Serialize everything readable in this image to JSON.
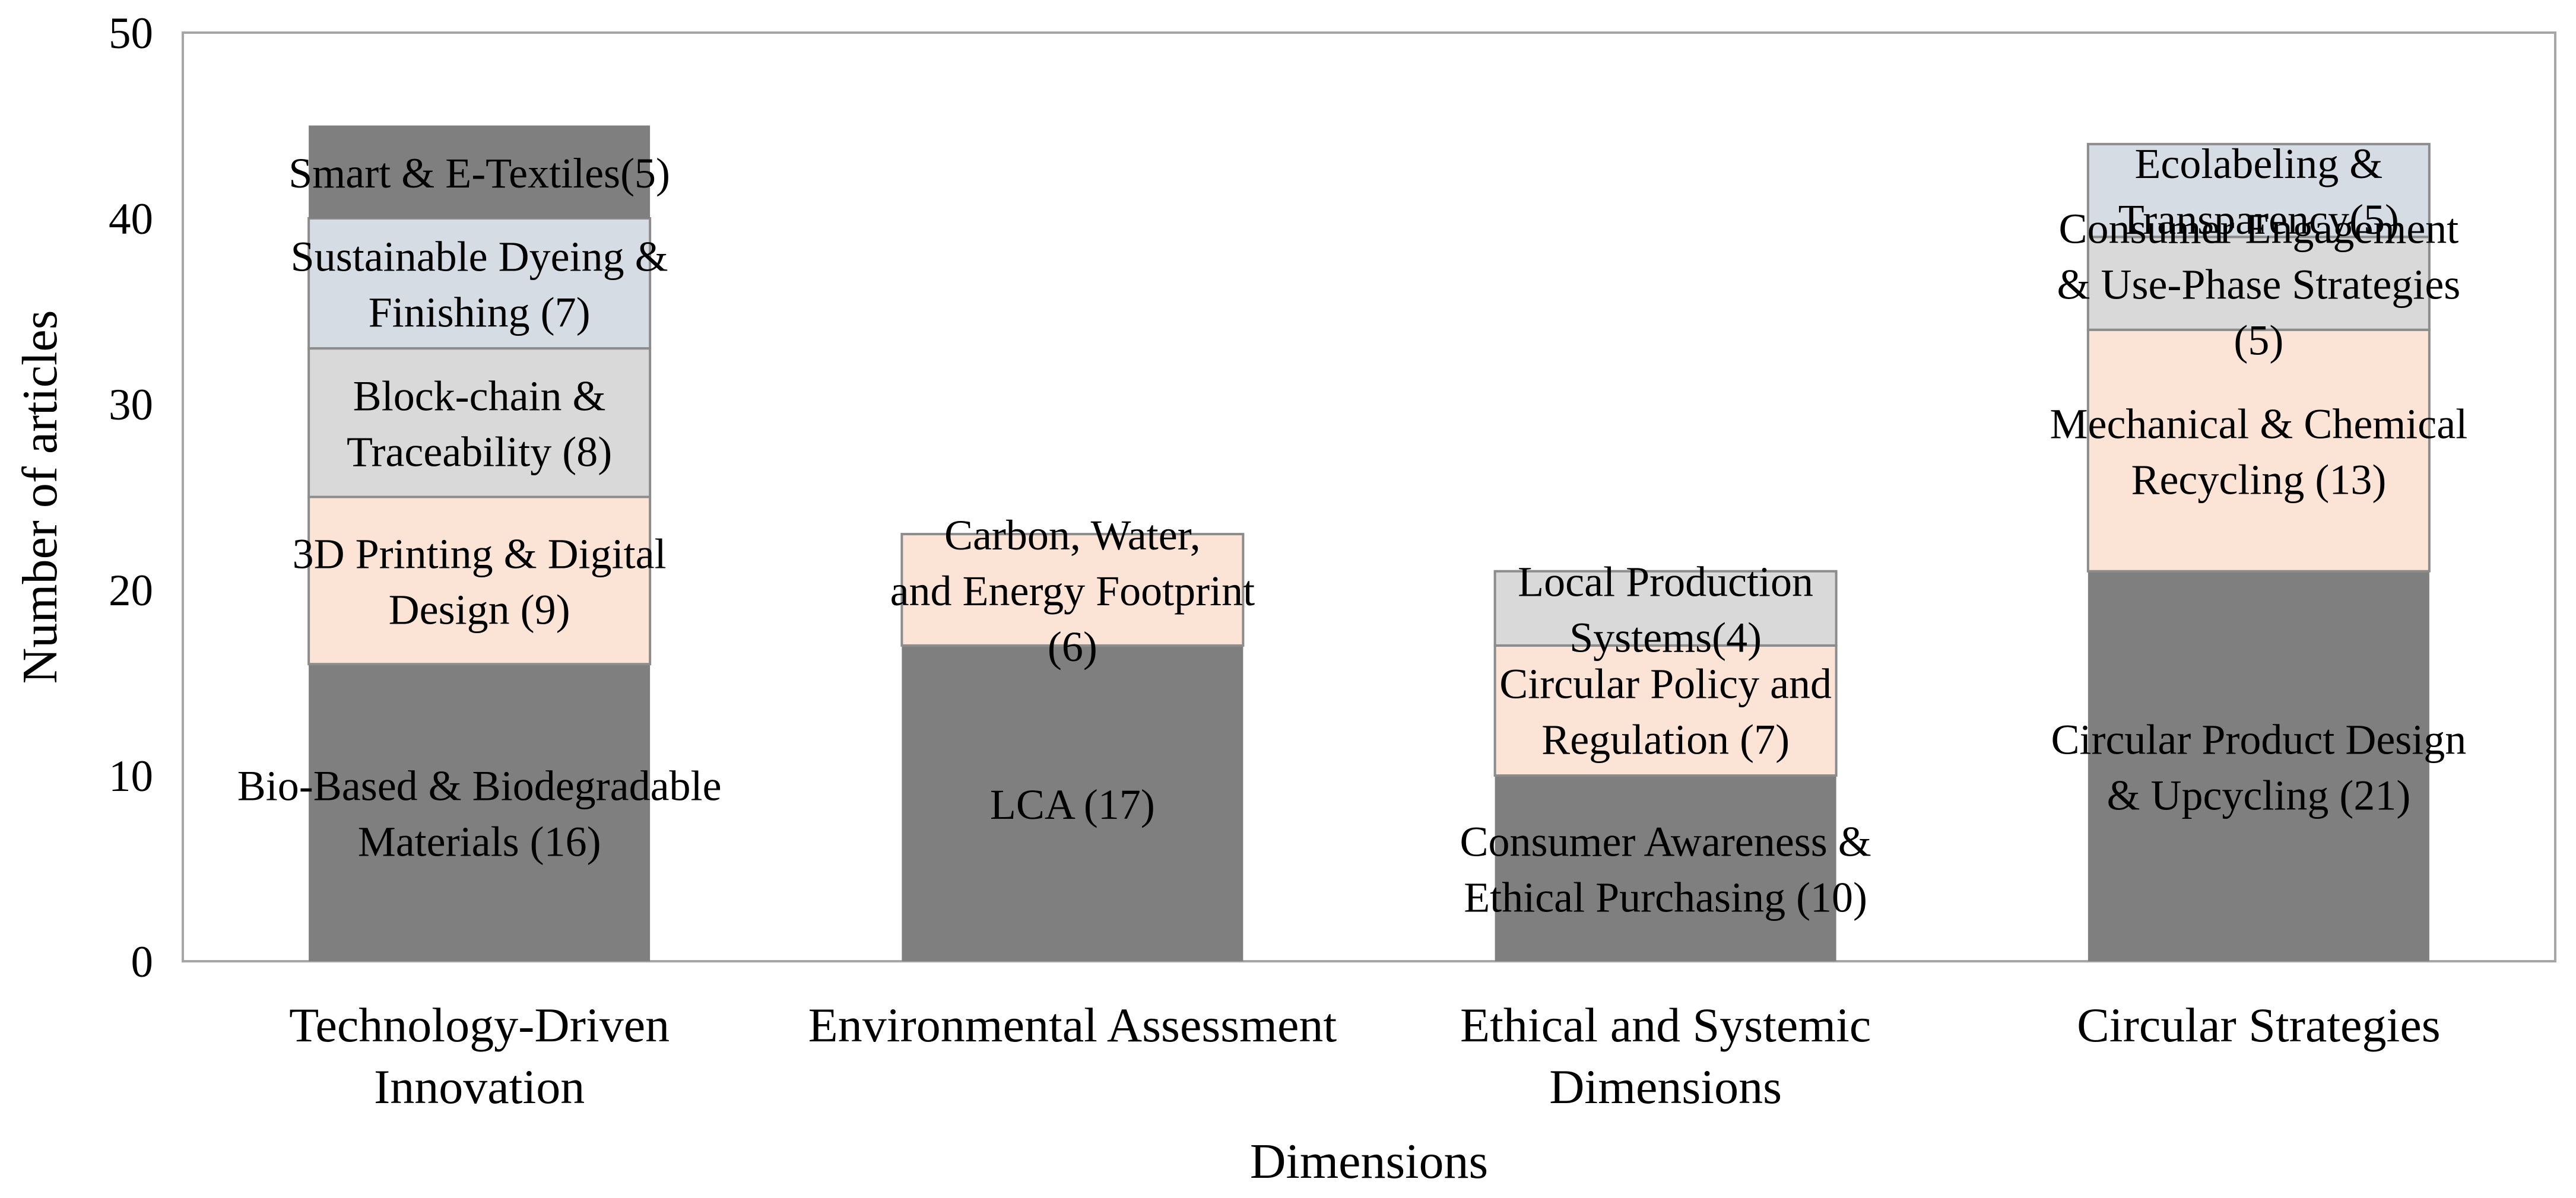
{
  "chart_data": {
    "type": "bar",
    "stacked": true,
    "title": "",
    "xlabel": "Dimensions",
    "ylabel": "Number of articles",
    "ylim": [
      0,
      50
    ],
    "yticks": [
      0,
      10,
      20,
      30,
      40,
      50
    ],
    "grid": false,
    "legend": "none",
    "categories": [
      {
        "label": [
          "Technology-Driven",
          "Innovation"
        ],
        "segments": [
          {
            "value": 16,
            "color": "#7f7f7f",
            "label": [
              "Bio-Based & Biodegradable",
              "Materials (16)"
            ]
          },
          {
            "value": 9,
            "color": "#fbe4d5",
            "label": [
              "3D Printing & Digital",
              "Design (9)"
            ]
          },
          {
            "value": 8,
            "color": "#d9d9d9",
            "label": [
              "Block-chain &",
              "Traceability (8)"
            ]
          },
          {
            "value": 7,
            "color": "#d6dce4",
            "label": [
              "Sustainable Dyeing &",
              "Finishing (7)"
            ]
          },
          {
            "value": 5,
            "color": "#7f7f7f",
            "label": [
              "Smart  & E-Textiles(5)"
            ]
          }
        ]
      },
      {
        "label": [
          "Environmental Assessment"
        ],
        "segments": [
          {
            "value": 17,
            "color": "#7f7f7f",
            "label": [
              "LCA (17)"
            ]
          },
          {
            "value": 6,
            "color": "#fbe4d5",
            "label": [
              "Carbon, Water,",
              "and Energy Footprint",
              "(6)"
            ]
          }
        ]
      },
      {
        "label": [
          "Ethical and Systemic",
          "Dimensions"
        ],
        "segments": [
          {
            "value": 10,
            "color": "#7f7f7f",
            "label": [
              "Consumer Awareness &",
              "Ethical Purchasing (10)"
            ]
          },
          {
            "value": 7,
            "color": "#fbe4d5",
            "label": [
              "Circular Policy and",
              "Regulation (7)"
            ]
          },
          {
            "value": 4,
            "color": "#d9d9d9",
            "label": [
              "Local Production",
              "Systems(4)"
            ]
          }
        ]
      },
      {
        "label": [
          "Circular Strategies"
        ],
        "segments": [
          {
            "value": 21,
            "color": "#7f7f7f",
            "label": [
              "Circular Product Design",
              "& Upcycling (21)"
            ]
          },
          {
            "value": 13,
            "color": "#fbe4d5",
            "label": [
              "Mechanical & Chemical",
              "Recycling (13)"
            ]
          },
          {
            "value": 5,
            "color": "#d9d9d9",
            "label": [
              "Consumer Engagement",
              "& Use-Phase Strategies",
              "(5)"
            ]
          },
          {
            "value": 5,
            "color": "#d6dce4",
            "label": [
              "Ecolabeling &",
              "Transparency(5)"
            ]
          }
        ]
      }
    ]
  }
}
